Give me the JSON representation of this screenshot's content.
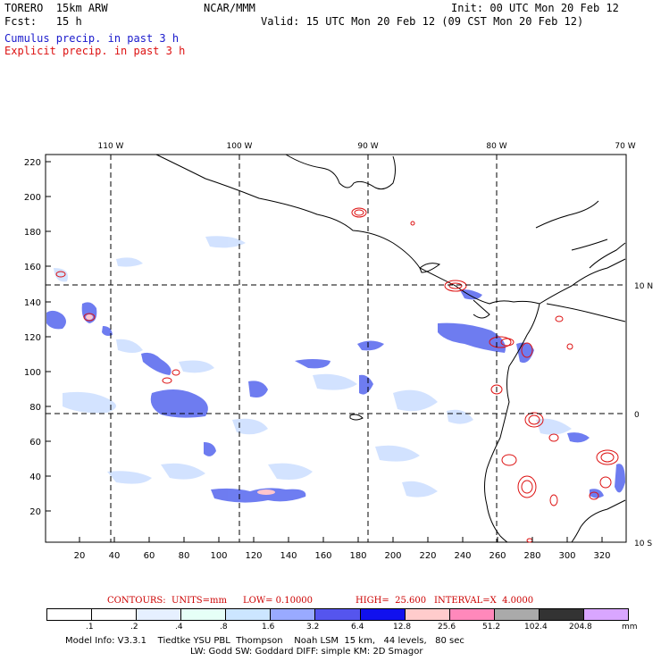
{
  "header": {
    "model": "TORERO  15km ARW",
    "org": "NCAR/MMM",
    "init": "Init: 00 UTC Mon 20 Feb 12",
    "fcst": "Fcst:   15 h",
    "valid": "Valid: 15 UTC Mon 20 Feb 12 (09 CST Mon 20 Feb 12)",
    "cumulus": "Cumulus precip. in past 3 h",
    "explicit": "Explicit precip. in past 3 h"
  },
  "map": {
    "lon_labels": [
      "110 W",
      "100 W",
      "90 W",
      "80 W",
      "70 W"
    ],
    "lat_labels": [
      "10 N",
      "0",
      "10 S"
    ],
    "y_ticks": [
      "220",
      "200",
      "180",
      "160",
      "140",
      "120",
      "100",
      "80",
      "60",
      "40",
      "20"
    ],
    "x_ticks": [
      "20",
      "40",
      "60",
      "80",
      "100",
      "120",
      "140",
      "160",
      "180",
      "200",
      "220",
      "240",
      "260",
      "280",
      "300",
      "320"
    ]
  },
  "contours": {
    "label": "CONTOURS:  UNITS=mm",
    "low": "LOW= 0.10000",
    "high": "HIGH=  25.600",
    "interval": "INTERVAL=X  4.0000"
  },
  "colorbar": {
    "labels": [
      ".1",
      ".2",
      ".4",
      ".8",
      "1.6",
      "3.2",
      "6.4",
      "12.8",
      "25.6",
      "51.2",
      "102.4",
      "204.8"
    ],
    "unit": "mm",
    "colors": [
      "#ffffff",
      "#ffffff",
      "#e6f0ff",
      "#e6fff7",
      "#cce6ff",
      "#99aaff",
      "#5555ee",
      "#1111ee",
      "#ffcccc",
      "#ff88bb",
      "#aaaaaa",
      "#333333",
      "#d9a6ff"
    ]
  },
  "footer": {
    "line1": "Model Info: V3.3.1    Tiedtke YSU PBL  Thompson    Noah LSM  15 km,   44 levels,   80 sec",
    "line2": "LW: Godd SW: Goddard DIFF: simple KM: 2D Smagor"
  }
}
